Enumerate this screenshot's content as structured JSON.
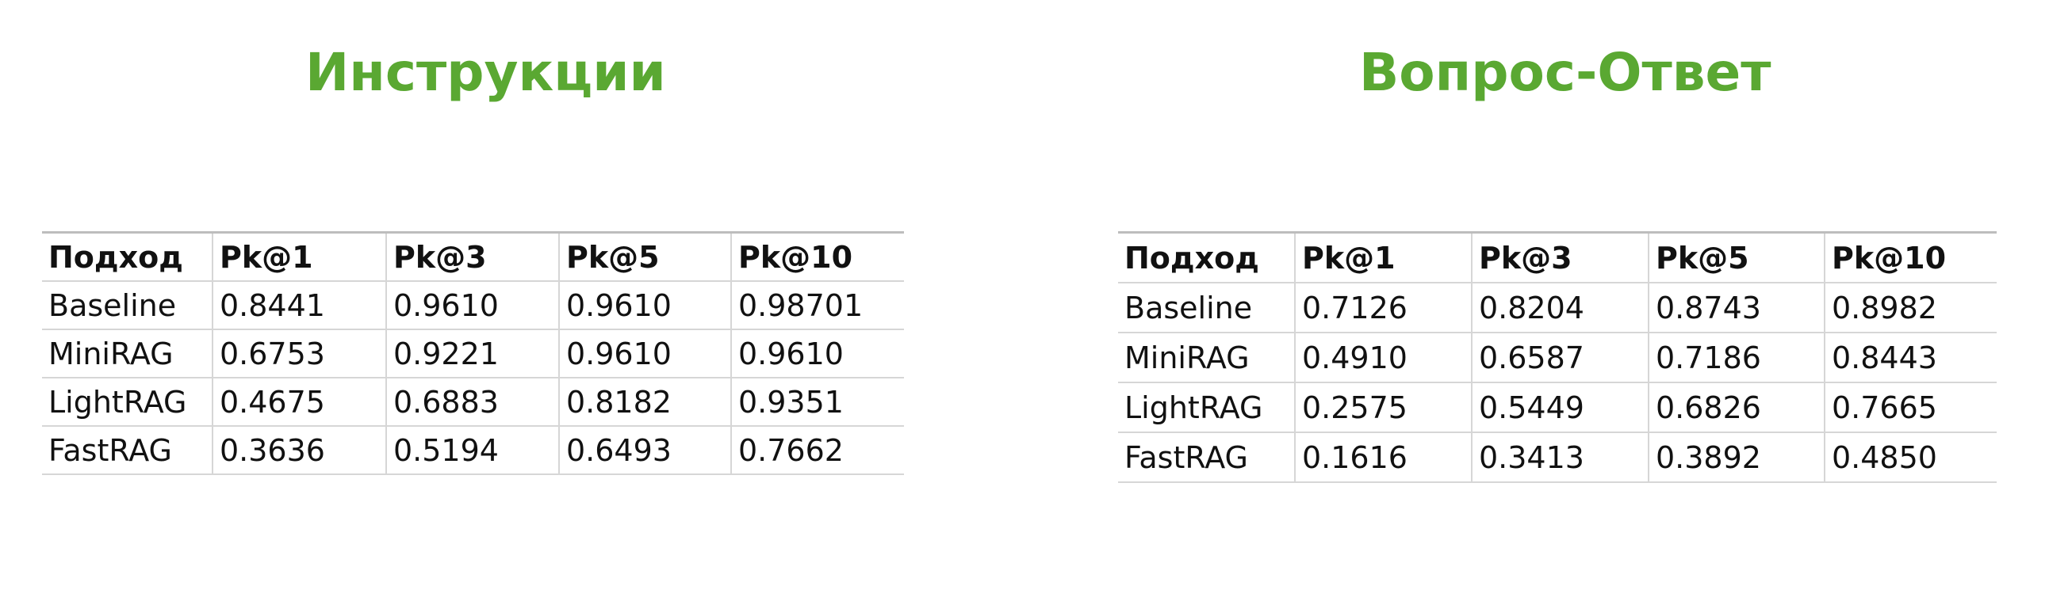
{
  "panels": [
    {
      "title": "Инструкции",
      "headers": [
        "Подход",
        "Pk@1",
        "Pk@3",
        "Pk@5",
        "Pk@10"
      ],
      "rows": [
        [
          "Baseline",
          "0.8441",
          "0.9610",
          "0.9610",
          "0.98701"
        ],
        [
          "MiniRAG",
          "0.6753",
          "0.9221",
          "0.9610",
          "0.9610"
        ],
        [
          "LightRAG",
          "0.4675",
          "0.6883",
          "0.8182",
          "0.9351"
        ],
        [
          "FastRAG",
          "0.3636",
          "0.5194",
          "0.6493",
          "0.7662"
        ]
      ]
    },
    {
      "title": "Вопрос-Ответ",
      "headers": [
        "Подход",
        "Pk@1",
        "Pk@3",
        "Pk@5",
        "Pk@10"
      ],
      "rows": [
        [
          "Baseline",
          "0.7126",
          "0.8204",
          "0.8743",
          "0.8982"
        ],
        [
          "MiniRAG",
          "0.4910",
          "0.6587",
          "0.7186",
          "0.8443"
        ],
        [
          "LightRAG",
          "0.2575",
          "0.5449",
          "0.6826",
          "0.7665"
        ],
        [
          "FastRAG",
          "0.1616",
          "0.3413",
          "0.3892",
          "0.4850"
        ]
      ]
    }
  ],
  "colors": {
    "title": "#5aa832",
    "grid": "#d6d6d6",
    "text": "#111111"
  }
}
